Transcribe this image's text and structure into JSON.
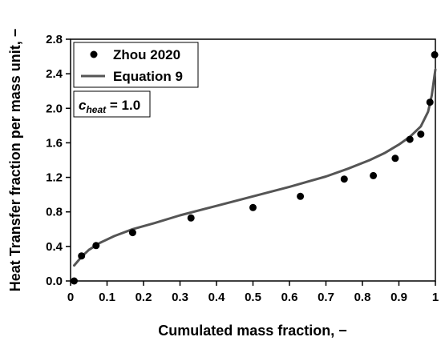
{
  "chart_data": {
    "type": "scatter",
    "xlabel": "Cumulated mass fraction, −",
    "ylabel": "Heat Transfer fraction per mass unit, −",
    "xlim": [
      0,
      1
    ],
    "ylim": [
      0,
      2.8
    ],
    "x_ticks": [
      "0",
      "0.1",
      "0.2",
      "0.3",
      "0.4",
      "0.5",
      "0.6",
      "0.7",
      "0.8",
      "0.9",
      "1"
    ],
    "y_ticks": [
      "0.0",
      "0.4",
      "0.8",
      "1.2",
      "1.6",
      "2.0",
      "2.4",
      "2.8"
    ],
    "grid": false,
    "legend_position": "top-left",
    "series": [
      {
        "name": "Zhou 2020",
        "kind": "scatter",
        "color": "#000000",
        "x": [
          0.01,
          0.03,
          0.07,
          0.17,
          0.33,
          0.5,
          0.63,
          0.75,
          0.83,
          0.89,
          0.93,
          0.96,
          0.985,
          0.998
        ],
        "y": [
          0.0,
          0.29,
          0.41,
          0.56,
          0.73,
          0.85,
          0.98,
          1.18,
          1.22,
          1.42,
          1.64,
          1.7,
          2.07,
          2.62
        ]
      },
      {
        "name": "Equation 9",
        "kind": "line",
        "color": "#555555",
        "x": [
          0.01,
          0.03,
          0.05,
          0.08,
          0.12,
          0.17,
          0.23,
          0.3,
          0.4,
          0.5,
          0.6,
          0.7,
          0.76,
          0.82,
          0.86,
          0.9,
          0.93,
          0.96,
          0.98,
          0.99,
          1.0
        ],
        "y": [
          0.18,
          0.28,
          0.36,
          0.44,
          0.52,
          0.6,
          0.67,
          0.76,
          0.87,
          0.98,
          1.09,
          1.21,
          1.3,
          1.4,
          1.48,
          1.58,
          1.67,
          1.79,
          1.96,
          2.15,
          2.45
        ]
      }
    ],
    "annotation": {
      "symbol": "c",
      "subscript": "heat",
      "value": " = 1.0"
    }
  }
}
